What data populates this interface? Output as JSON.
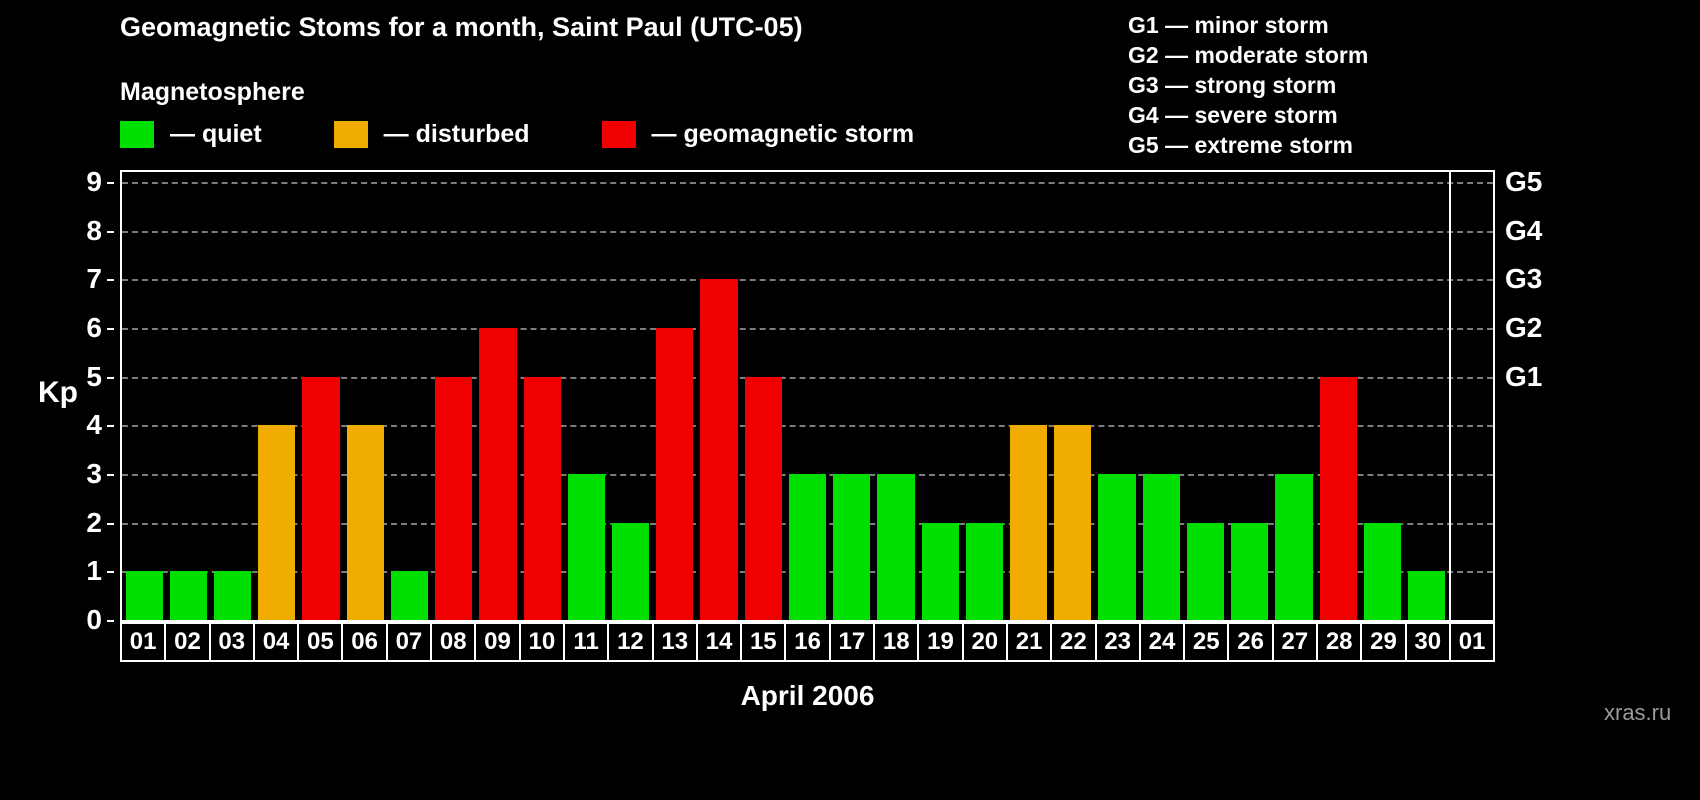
{
  "title": "Geomagnetic Stoms for a month, Saint Paul (UTC-05)",
  "legend": {
    "heading": "Magnetosphere",
    "items": [
      {
        "label": "— quiet",
        "status": "quiet",
        "color": "#00e000"
      },
      {
        "label": "— disturbed",
        "status": "disturbed",
        "color": "#f0ac00"
      },
      {
        "label": "— geomagnetic storm",
        "status": "storm",
        "color": "#f00000"
      }
    ]
  },
  "storm_scale_legend": [
    "G1 — minor storm",
    "G2 — moderate storm",
    "G3 — strong storm",
    "G4 — severe storm",
    "G5 — extreme storm"
  ],
  "watermark": "xras.ru",
  "chart_data": {
    "type": "bar",
    "title": "Geomagnetic Stoms for a month, Saint Paul (UTC-05)",
    "xlabel": "April 2006",
    "ylabel": "Kp",
    "ylim": [
      0,
      9
    ],
    "yticks": [
      0,
      1,
      2,
      3,
      4,
      5,
      6,
      7,
      8,
      9
    ],
    "grid": "dashed-horizontal",
    "legend_position": "top",
    "right_axis": {
      "labels": [
        "G1",
        "G2",
        "G3",
        "G4",
        "G5"
      ],
      "kp_positions": [
        5,
        6,
        7,
        8,
        9
      ]
    },
    "categories": [
      "01",
      "02",
      "03",
      "04",
      "05",
      "06",
      "07",
      "08",
      "09",
      "10",
      "11",
      "12",
      "13",
      "14",
      "15",
      "16",
      "17",
      "18",
      "19",
      "20",
      "21",
      "22",
      "23",
      "24",
      "25",
      "26",
      "27",
      "28",
      "29",
      "30",
      "01"
    ],
    "values": [
      1,
      1,
      1,
      4,
      5,
      4,
      1,
      5,
      6,
      5,
      3,
      2,
      6,
      7,
      5,
      3,
      3,
      3,
      2,
      2,
      4,
      4,
      3,
      3,
      2,
      2,
      3,
      5,
      2,
      1,
      null
    ],
    "color_rules": {
      "quiet_max": 3,
      "disturbed_max": 4
    },
    "colors": {
      "quiet": "#00e000",
      "disturbed": "#f0ac00",
      "storm": "#f00000"
    }
  }
}
